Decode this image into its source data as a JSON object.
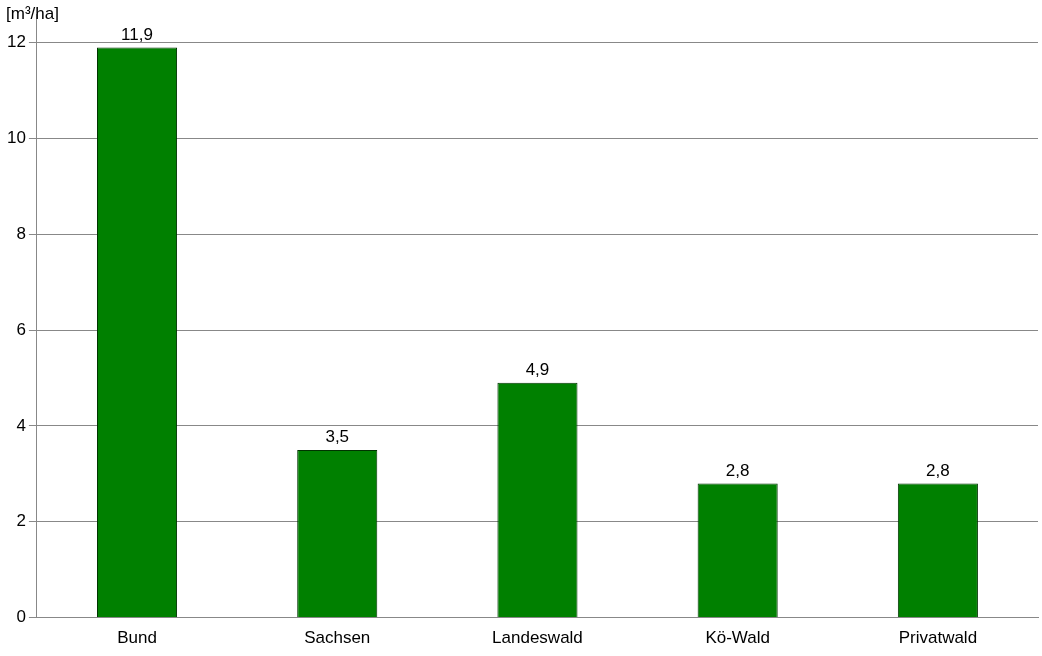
{
  "chart_data": {
    "type": "bar",
    "ylabel": "[m³/ha]",
    "categories": [
      "Bund",
      "Sachsen",
      "Landeswald",
      "Kö-Wald",
      "Privatwald"
    ],
    "values": [
      11.9,
      3.5,
      4.9,
      2.8,
      2.8
    ],
    "value_labels": [
      "11,9",
      "3,5",
      "4,9",
      "2,8",
      "2,8"
    ],
    "color": "#008000",
    "ylim": [
      0,
      12.6
    ],
    "yticks": [
      0,
      2,
      4,
      6,
      8,
      10,
      12
    ],
    "grid": "y",
    "legend": false
  }
}
